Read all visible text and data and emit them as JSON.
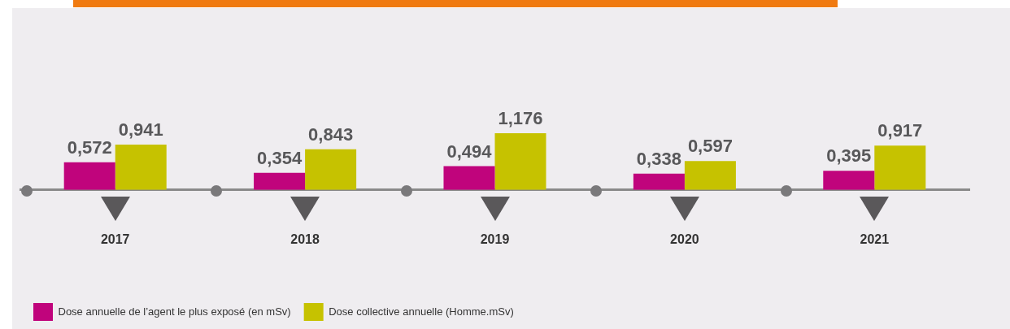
{
  "chart_data": {
    "type": "bar",
    "categories": [
      "2017",
      "2018",
      "2019",
      "2020",
      "2021"
    ],
    "series": [
      {
        "name": "Dose annuelle de l’agent le plus exposé (en mSv)",
        "color": "#c0047c",
        "values": [
          0.572,
          0.354,
          0.494,
          0.338,
          0.395
        ],
        "value_labels": [
          "0,572",
          "0,354",
          "0,494",
          "0,338",
          "0,395"
        ]
      },
      {
        "name": "Dose collective annuelle (Homme.mSv)",
        "color": "#c6c200",
        "values": [
          0.941,
          0.843,
          1.176,
          0.597,
          0.917
        ],
        "value_labels": [
          "0,941",
          "0,843",
          "1,176",
          "0,597",
          "0,917"
        ]
      }
    ],
    "legend": "bottom left",
    "grid": false
  }
}
